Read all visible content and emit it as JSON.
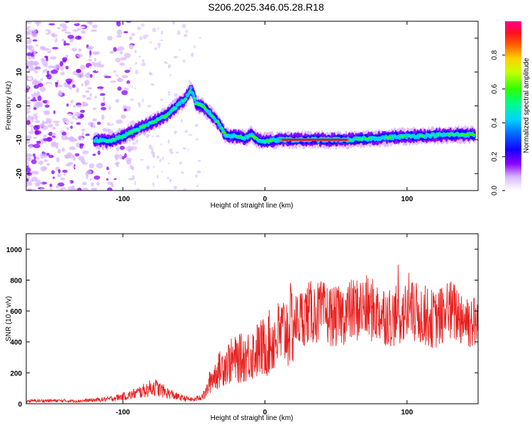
{
  "title": "S206.2025.346.05.28.R18",
  "chart_data": [
    {
      "type": "heatmap",
      "xlabel": "Height of straight line (km)",
      "ylabel": "Frequency (Hz)",
      "xlim": [
        -168,
        150
      ],
      "ylim": [
        -25,
        25
      ],
      "xticks": [
        -100,
        0,
        100
      ],
      "yticks": [
        -20,
        -10,
        0,
        10,
        20
      ],
      "ridge": {
        "x": [
          -120,
          -110,
          -100,
          -90,
          -80,
          -70,
          -62,
          -56,
          -52,
          -48,
          -44,
          -38,
          -32,
          -28,
          -22,
          -18,
          -14,
          -10,
          -5,
          0,
          10,
          30,
          60,
          100,
          130,
          148
        ],
        "freq": [
          -10,
          -10.5,
          -9,
          -7,
          -5,
          -3,
          0,
          2,
          5,
          0.5,
          0,
          -2.5,
          -5.5,
          -8.5,
          -9,
          -9,
          -9.5,
          -8.5,
          -10,
          -10.5,
          -10,
          -10,
          -10,
          -9,
          -8.5,
          -8.5
        ]
      },
      "colorbar": {
        "label": "Normalized spectral amplitude",
        "ticks": [
          "0.0",
          "0.2",
          "0.4",
          "0.6",
          "0.8"
        ],
        "range": [
          0,
          1
        ]
      }
    },
    {
      "type": "line",
      "xlabel": "Height of straight line (km)",
      "ylabel": "SNR (10 * v/v)",
      "xlim": [
        -168,
        150
      ],
      "ylim": [
        0,
        1100
      ],
      "xticks": [
        -100,
        0,
        100
      ],
      "yticks": [
        0,
        200,
        400,
        600,
        800,
        1000
      ],
      "series": [
        {
          "name": "SNR",
          "color": "#e8201f",
          "x": [
            -168,
            -150,
            -130,
            -110,
            -95,
            -85,
            -78,
            -70,
            -60,
            -50,
            -42,
            -38,
            -33,
            -28,
            -22,
            -15,
            -8,
            0,
            10,
            20,
            30,
            40,
            50,
            60,
            70,
            80,
            90,
            100,
            110,
            120,
            130,
            140,
            148
          ],
          "values": [
            18,
            20,
            18,
            30,
            55,
            85,
            110,
            75,
            40,
            25,
            60,
            160,
            210,
            260,
            280,
            300,
            330,
            370,
            440,
            520,
            590,
            590,
            560,
            600,
            620,
            590,
            560,
            590,
            580,
            540,
            600,
            560,
            520
          ]
        }
      ]
    }
  ]
}
